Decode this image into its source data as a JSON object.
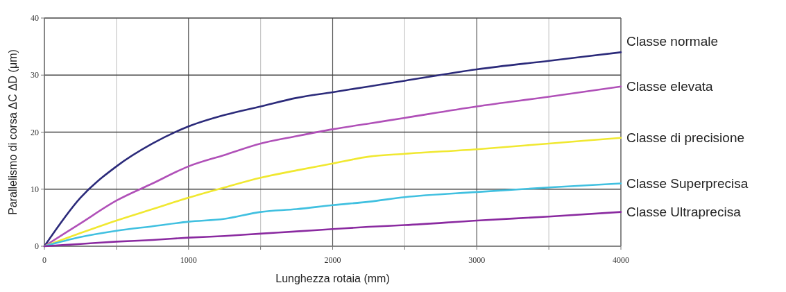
{
  "chart_data": {
    "type": "line",
    "xlabel": "Lunghezza rotaia (mm)",
    "ylabel": "Parallelismo di corsa  ΔC  ΔD (μm)",
    "x": [
      0,
      250,
      500,
      750,
      1000,
      1250,
      1500,
      1750,
      2000,
      2250,
      2500,
      3000,
      3500,
      4000
    ],
    "series": [
      {
        "name": "Classe normale",
        "color": "#2b2a7a",
        "values": [
          0,
          8.5,
          14,
          18,
          21,
          23,
          24.5,
          26,
          27,
          28,
          29,
          31,
          32.5,
          34
        ]
      },
      {
        "name": "Classe elevata",
        "color": "#b050b8",
        "values": [
          0,
          4,
          8,
          11,
          14,
          16,
          18,
          19.3,
          20.5,
          21.5,
          22.5,
          24.5,
          26.2,
          28
        ]
      },
      {
        "name": "Classe di precisione",
        "color": "#f0e830",
        "values": [
          0,
          2.3,
          4.5,
          6.5,
          8.5,
          10.3,
          12,
          13.3,
          14.5,
          15.7,
          16.2,
          17,
          18,
          19
        ]
      },
      {
        "name": "Classe Superprecisa",
        "color": "#40c0e0",
        "values": [
          0,
          1.6,
          2.7,
          3.5,
          4.3,
          4.8,
          6,
          6.5,
          7.2,
          7.8,
          8.6,
          9.5,
          10.3,
          11
        ]
      },
      {
        "name": "Classe Ultraprecisa",
        "color": "#8a2aa0",
        "values": [
          0,
          0.4,
          0.8,
          1.1,
          1.5,
          1.8,
          2.2,
          2.6,
          3,
          3.4,
          3.7,
          4.5,
          5.2,
          6
        ]
      }
    ],
    "xlim": [
      0,
      4000
    ],
    "xticks": [
      0,
      {
        "value": 500,
        "label": null
      },
      1000,
      {
        "value": 1500,
        "label": null
      },
      2000,
      {
        "value": 2500,
        "label": null
      },
      3000,
      {
        "value": 3500,
        "label": null
      },
      4000
    ],
    "ylim": [
      0,
      40
    ],
    "yticks": [
      0,
      10,
      20,
      30,
      40
    ],
    "grid": true,
    "legend": "right",
    "marker": "none",
    "line_style": "solid"
  }
}
